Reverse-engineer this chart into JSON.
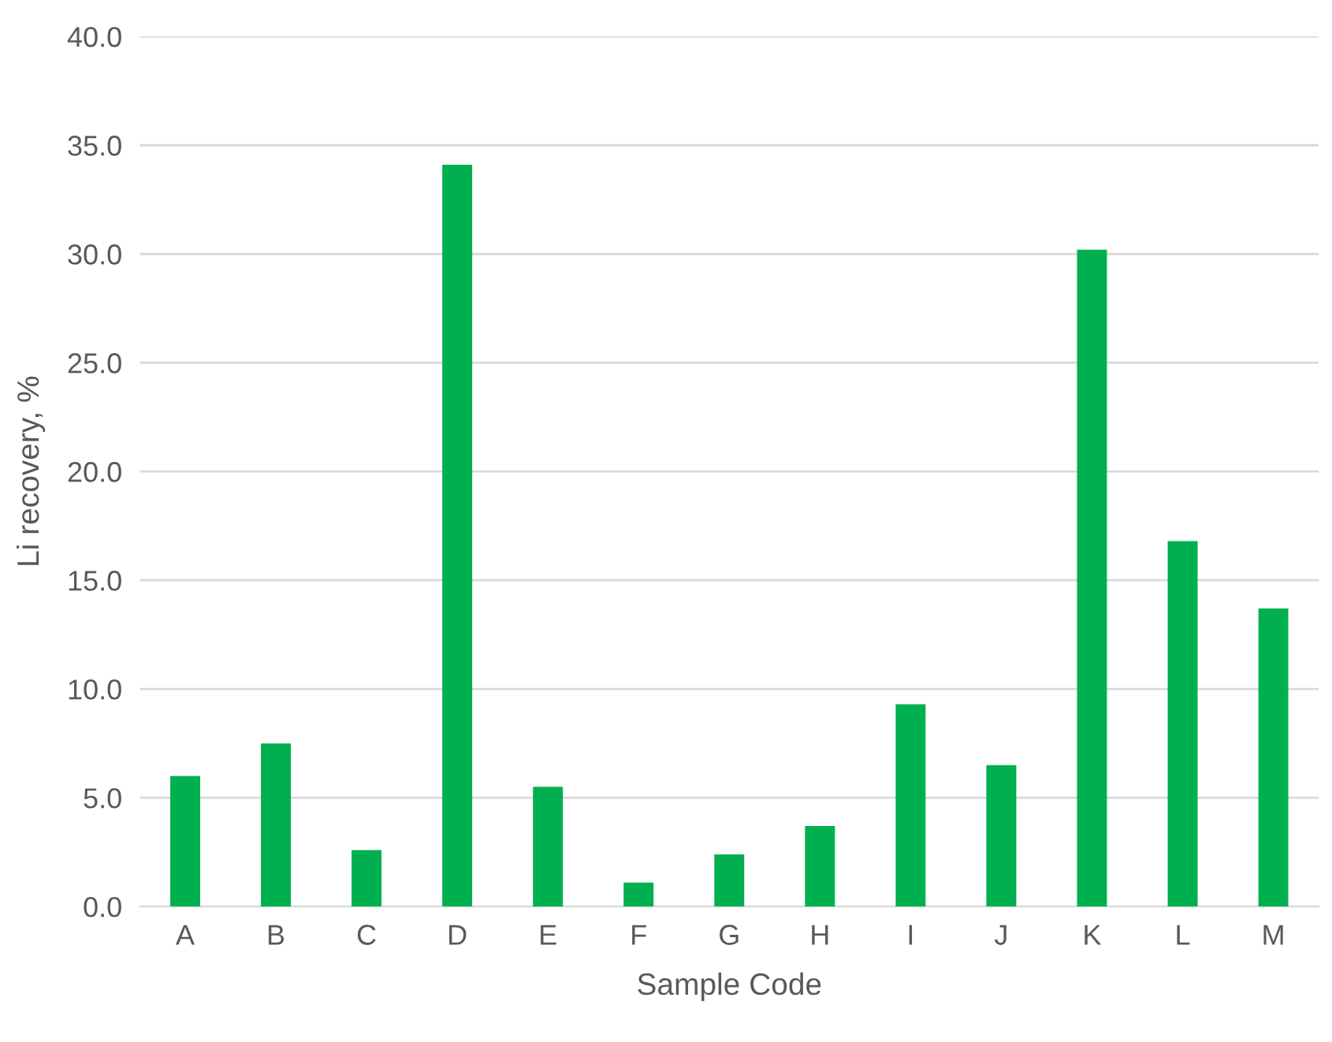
{
  "chart_data": {
    "type": "bar",
    "xlabel": "Sample Code",
    "ylabel": "Li recovery, %",
    "categories": [
      "A",
      "B",
      "C",
      "D",
      "E",
      "F",
      "G",
      "H",
      "I",
      "J",
      "K",
      "L",
      "M"
    ],
    "values": [
      6.0,
      7.5,
      2.6,
      34.1,
      5.5,
      1.1,
      2.4,
      3.7,
      9.3,
      6.5,
      30.2,
      16.8,
      13.7
    ],
    "color": "#00b050",
    "ylim": [
      0,
      40
    ],
    "yticks": [
      {
        "value": 0,
        "label": "0.0"
      },
      {
        "value": 5,
        "label": "5.0"
      },
      {
        "value": 10,
        "label": "10.0"
      },
      {
        "value": 15,
        "label": "15.0"
      },
      {
        "value": 20,
        "label": "20.0"
      },
      {
        "value": 25,
        "label": "25.0"
      },
      {
        "value": 30,
        "label": "30.0"
      },
      {
        "value": 35,
        "label": "35.0"
      },
      {
        "value": 40,
        "label": "40.0"
      }
    ],
    "grid": "y"
  }
}
